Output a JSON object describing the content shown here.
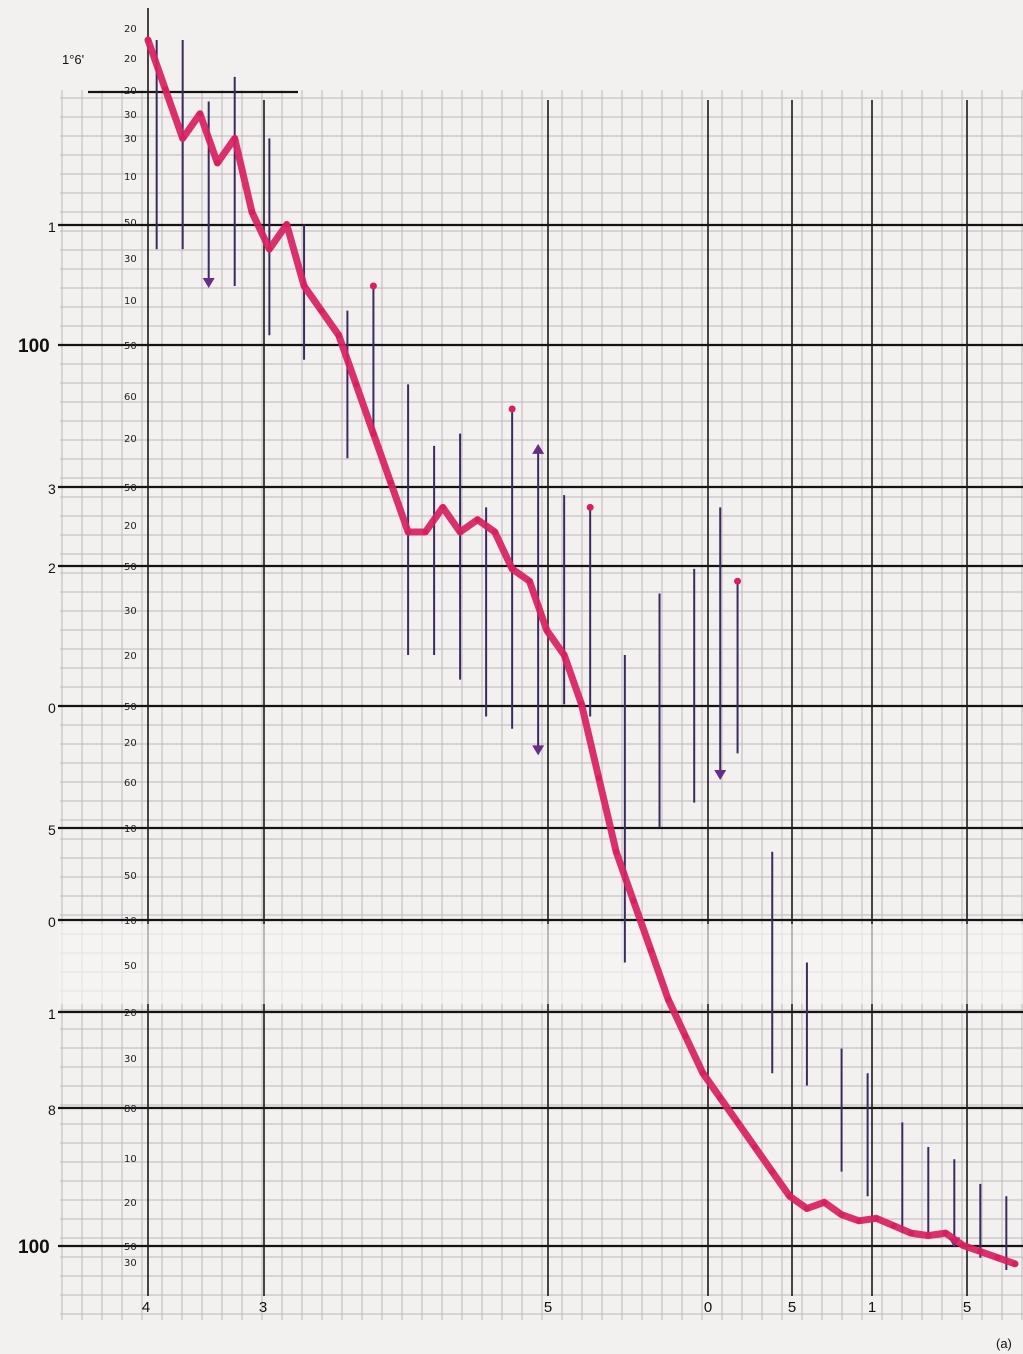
{
  "chart_data": {
    "type": "line",
    "title": "",
    "subtitle": "",
    "xlabel": "",
    "ylabel": "",
    "panel_label": "(a)",
    "corner_label": "1°6'",
    "grid": true,
    "left_labels": [
      "1",
      "100",
      "3",
      "2",
      "0",
      "5",
      "0",
      "1",
      "8",
      "100"
    ],
    "inner_labels": [
      "20",
      "20",
      "20",
      "30",
      "30",
      "10",
      "50",
      "30",
      "10",
      "50",
      "60",
      "20",
      "50",
      "20",
      "50",
      "30",
      "20",
      "50",
      "20",
      "60",
      "10",
      "50",
      "10",
      "50",
      "20",
      "30",
      "80",
      "10",
      "20",
      "50",
      "30"
    ],
    "bottom_labels": [
      "4",
      "3",
      "5",
      "0",
      "5",
      "1",
      "5"
    ],
    "series": [
      {
        "color": "#d81f5f",
        "x": [
          0.0,
          0.02,
          0.04,
          0.06,
          0.08,
          0.1,
          0.12,
          0.14,
          0.16,
          0.18,
          0.2,
          0.22,
          0.24,
          0.26,
          0.28,
          0.3,
          0.32,
          0.34,
          0.36,
          0.38,
          0.4,
          0.42,
          0.44,
          0.46,
          0.48,
          0.5,
          0.52,
          0.54,
          0.56,
          0.58,
          0.6,
          0.62,
          0.64,
          0.66,
          0.68,
          0.7,
          0.72,
          0.74,
          0.76,
          0.78,
          0.8,
          0.82,
          0.84,
          0.86,
          0.88,
          0.9,
          0.92,
          0.94,
          0.96,
          0.98,
          1.0
        ],
        "y": [
          1.0,
          0.96,
          0.92,
          0.94,
          0.9,
          0.92,
          0.86,
          0.83,
          0.85,
          0.8,
          0.78,
          0.76,
          0.72,
          0.68,
          0.64,
          0.6,
          0.6,
          0.62,
          0.6,
          0.61,
          0.6,
          0.57,
          0.56,
          0.52,
          0.5,
          0.46,
          0.4,
          0.34,
          0.3,
          0.26,
          0.22,
          0.19,
          0.16,
          0.14,
          0.12,
          0.1,
          0.08,
          0.06,
          0.05,
          0.055,
          0.045,
          0.04,
          0.042,
          0.036,
          0.03,
          0.028,
          0.03,
          0.02,
          0.015,
          0.01,
          0.005
        ]
      }
    ],
    "error_bars": [
      {
        "x": 0.01,
        "high": 1.0,
        "low": 0.83
      },
      {
        "x": 0.04,
        "high": 1.0,
        "low": 0.83
      },
      {
        "x": 0.07,
        "high": 0.95,
        "low": 0.8,
        "arrow": "down"
      },
      {
        "x": 0.1,
        "high": 0.97,
        "low": 0.8
      },
      {
        "x": 0.14,
        "high": 0.92,
        "low": 0.76
      },
      {
        "x": 0.18,
        "high": 0.85,
        "low": 0.74
      },
      {
        "x": 0.23,
        "high": 0.78,
        "low": 0.66
      },
      {
        "x": 0.26,
        "high": 0.8,
        "low": 0.68,
        "dot": true
      },
      {
        "x": 0.3,
        "high": 0.72,
        "low": 0.5
      },
      {
        "x": 0.33,
        "high": 0.67,
        "low": 0.5
      },
      {
        "x": 0.36,
        "high": 0.68,
        "low": 0.48
      },
      {
        "x": 0.39,
        "high": 0.62,
        "low": 0.45
      },
      {
        "x": 0.42,
        "high": 0.7,
        "low": 0.44,
        "dot": true
      },
      {
        "x": 0.45,
        "high": 0.67,
        "low": 0.42,
        "arrow": "both"
      },
      {
        "x": 0.48,
        "high": 0.63,
        "low": 0.46
      },
      {
        "x": 0.51,
        "high": 0.62,
        "low": 0.45,
        "dot": true
      },
      {
        "x": 0.55,
        "high": 0.5,
        "low": 0.25
      },
      {
        "x": 0.59,
        "high": 0.55,
        "low": 0.36
      },
      {
        "x": 0.63,
        "high": 0.57,
        "low": 0.38
      },
      {
        "x": 0.66,
        "high": 0.62,
        "low": 0.4,
        "arrow": "down"
      },
      {
        "x": 0.68,
        "high": 0.56,
        "low": 0.42,
        "dot": true
      },
      {
        "x": 0.72,
        "high": 0.34,
        "low": 0.16
      },
      {
        "x": 0.76,
        "high": 0.25,
        "low": 0.15
      },
      {
        "x": 0.8,
        "high": 0.18,
        "low": 0.08
      },
      {
        "x": 0.83,
        "high": 0.16,
        "low": 0.06
      },
      {
        "x": 0.87,
        "high": 0.12,
        "low": 0.03
      },
      {
        "x": 0.9,
        "high": 0.1,
        "low": 0.03
      },
      {
        "x": 0.93,
        "high": 0.09,
        "low": 0.02,
        "arrow": "down"
      },
      {
        "x": 0.96,
        "high": 0.07,
        "low": 0.01
      },
      {
        "x": 0.99,
        "high": 0.06,
        "low": 0.0
      }
    ]
  }
}
